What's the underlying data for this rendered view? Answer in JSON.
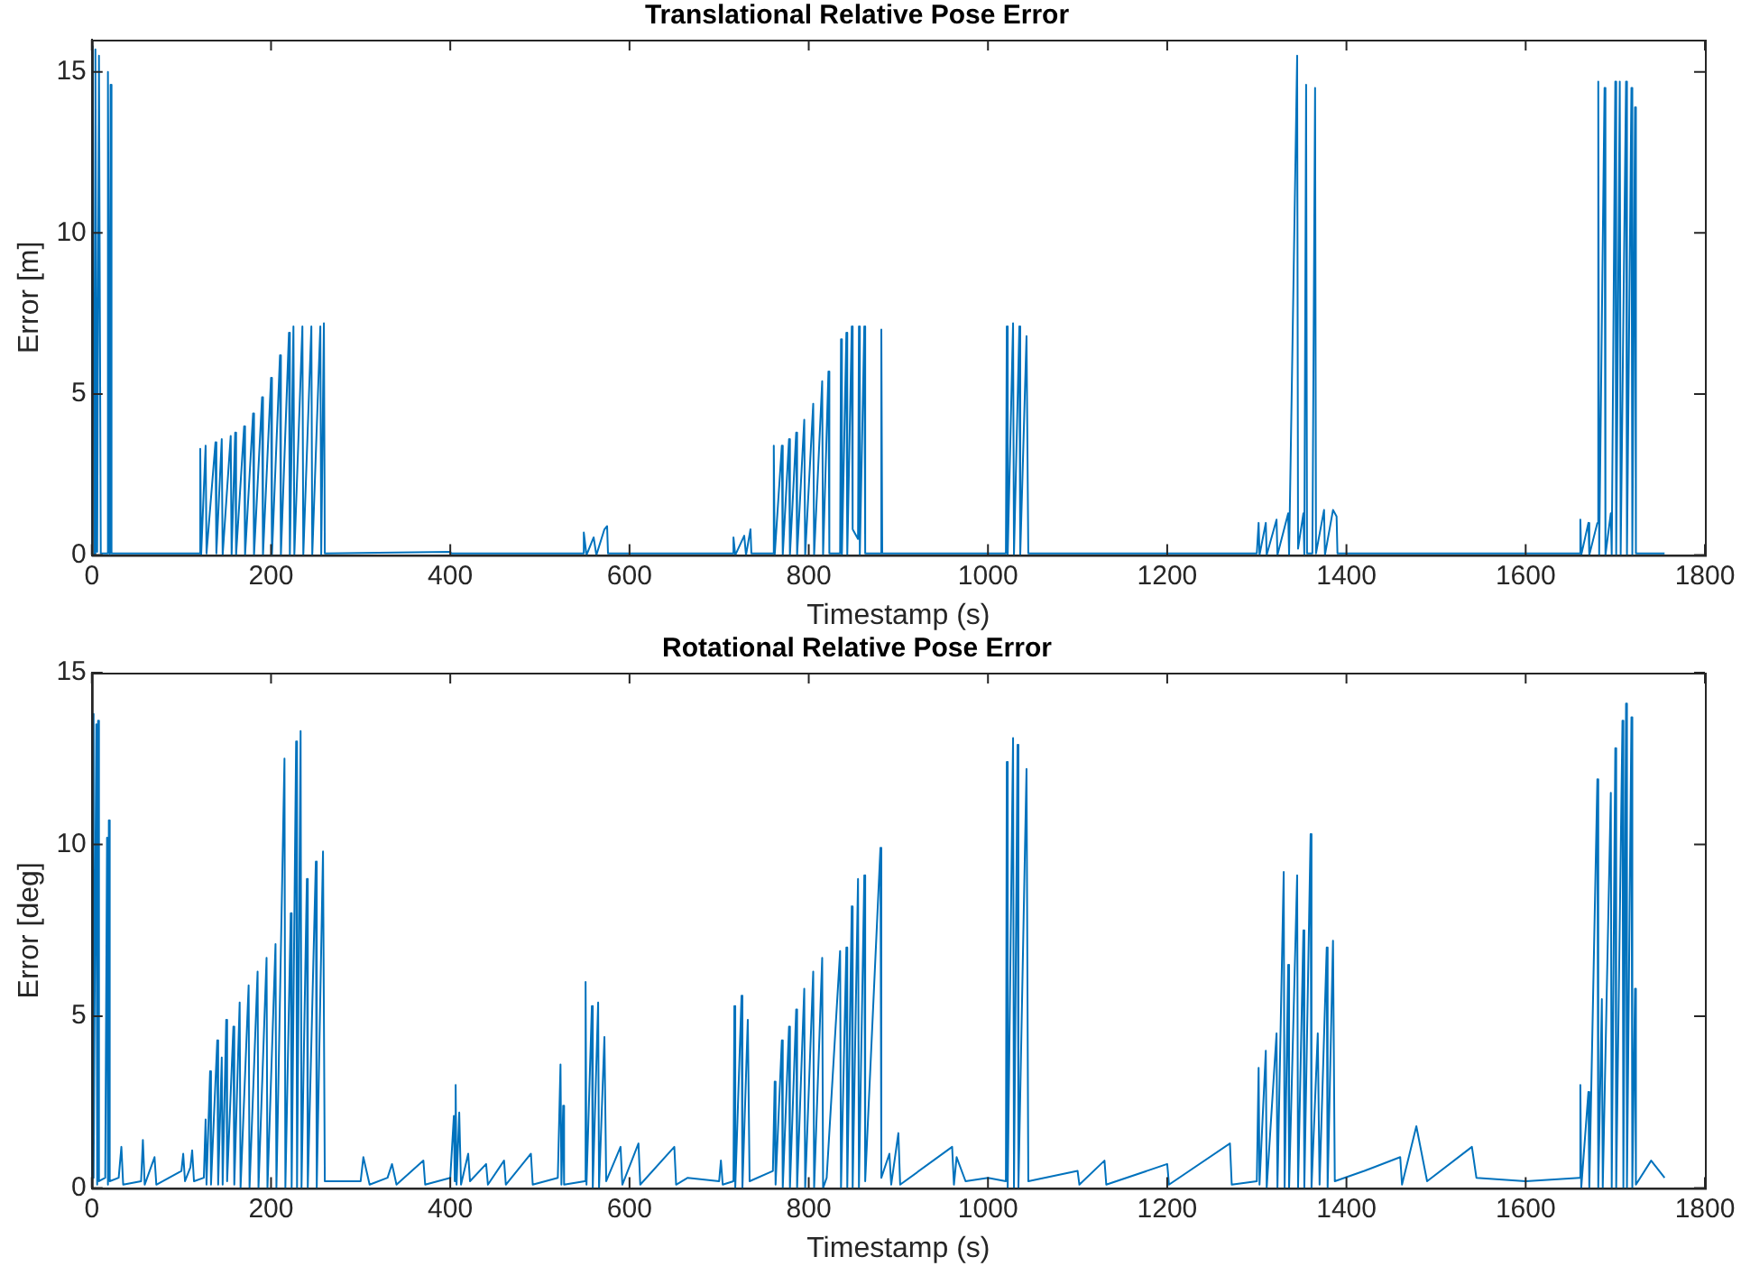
{
  "chart_data": [
    {
      "type": "line",
      "title": "Translational Relative Pose Error",
      "xlabel": "Timestamp (s)",
      "ylabel": "Error [m]",
      "xlim": [
        0,
        1800
      ],
      "xticks": [
        0,
        200,
        400,
        600,
        800,
        1000,
        1200,
        1400,
        1600,
        1800
      ],
      "ylim": [
        0,
        16
      ],
      "yticks": [
        0,
        5,
        10,
        15
      ],
      "grid": false,
      "legend": false,
      "marker": "none",
      "line_style": "solid",
      "series": [
        {
          "color": "#0072bd",
          "x": [
            0,
            1,
            3,
            4,
            6,
            8,
            10,
            17,
            18,
            20,
            21,
            22,
            120,
            121,
            122,
            127,
            128,
            138,
            139,
            145,
            146,
            155,
            156,
            160,
            161,
            170,
            171,
            180,
            181,
            190,
            191,
            200,
            201,
            210,
            211,
            220,
            221,
            225,
            226,
            235,
            236,
            245,
            246,
            255,
            256,
            259,
            260,
            400,
            401,
            548,
            549,
            552,
            560,
            563,
            572,
            575,
            576,
            715,
            716,
            718,
            728,
            730,
            735,
            736,
            760,
            761,
            762,
            770,
            771,
            778,
            779,
            786,
            787,
            795,
            796,
            805,
            806,
            815,
            816,
            822,
            823,
            835,
            836,
            837,
            842,
            843,
            848,
            849,
            855,
            856,
            857,
            862,
            863,
            880,
            881,
            882,
            1020,
            1021,
            1022,
            1028,
            1029,
            1035,
            1036,
            1043,
            1045,
            1300,
            1302,
            1303,
            1310,
            1311,
            1322,
            1323,
            1335,
            1336,
            1345,
            1346,
            1352,
            1353,
            1355,
            1356,
            1362,
            1365,
            1366,
            1375,
            1376,
            1385,
            1389,
            1390,
            1660,
            1661,
            1662,
            1670,
            1671,
            1680,
            1681,
            1682,
            1688,
            1689,
            1695,
            1696,
            1700,
            1701,
            1705,
            1706,
            1712,
            1713,
            1718,
            1719,
            1722,
            1723,
            1755
          ],
          "values": [
            0,
            15.8,
            0,
            15.7,
            0.1,
            15.5,
            0.05,
            0.05,
            15,
            0,
            14.6,
            0.05,
            0.05,
            3.3,
            0,
            3.4,
            0.05,
            3.5,
            0.05,
            3.6,
            0,
            3.7,
            0,
            3.8,
            0,
            4.0,
            0,
            4.4,
            0,
            4.9,
            0,
            5.5,
            0,
            6.2,
            0,
            6.9,
            0,
            7.1,
            0,
            7.1,
            0,
            7.1,
            0,
            7.1,
            0,
            7.2,
            0.05,
            0.1,
            0.05,
            0.05,
            0.7,
            0,
            0.55,
            0,
            0.8,
            0.9,
            0.05,
            0.05,
            0.55,
            0,
            0.6,
            0,
            0.8,
            0.05,
            0.05,
            3.4,
            0,
            3.4,
            0,
            3.6,
            0,
            3.8,
            0,
            4.2,
            0,
            4.7,
            0,
            5.4,
            0,
            5.7,
            0.05,
            0.05,
            6.7,
            0,
            6.9,
            0,
            7.1,
            0.8,
            0.5,
            7.1,
            0,
            7.1,
            0.05,
            0.05,
            7.0,
            0.05,
            0.05,
            7.1,
            0,
            7.2,
            0,
            7.1,
            0,
            6.8,
            0.05,
            0.05,
            1.0,
            0,
            1.0,
            0,
            1.1,
            0,
            1.3,
            0,
            15.5,
            0.2,
            1.3,
            0,
            14.6,
            0.05,
            0.05,
            14.5,
            0.05,
            1.4,
            0,
            1.4,
            1.2,
            0.05,
            0.05,
            1.1,
            0,
            1.0,
            0,
            1.0,
            14.7,
            0,
            14.5,
            0,
            1.3,
            0,
            14.7,
            0,
            14.7,
            0,
            14.7,
            0,
            14.5,
            0,
            13.9,
            0.05,
            0.05
          ]
        }
      ]
    },
    {
      "type": "line",
      "title": "Rotational Relative Pose Error",
      "xlabel": "Timestamp (s)",
      "ylabel": "Error [deg]",
      "xlim": [
        0,
        1800
      ],
      "xticks": [
        0,
        200,
        400,
        600,
        800,
        1000,
        1200,
        1400,
        1600,
        1800
      ],
      "ylim": [
        0,
        15
      ],
      "yticks": [
        0,
        5,
        10,
        15
      ],
      "grid": false,
      "legend": false,
      "marker": "none",
      "line_style": "solid",
      "series": [
        {
          "color": "#0072bd",
          "x": [
            0,
            1,
            2,
            5,
            6,
            7,
            8,
            15,
            17,
            18,
            19,
            20,
            30,
            33,
            35,
            55,
            57,
            59,
            70,
            72,
            100,
            102,
            104,
            110,
            112,
            114,
            125,
            127,
            128,
            132,
            133,
            140,
            141,
            145,
            146,
            150,
            151,
            158,
            159,
            165,
            166,
            175,
            176,
            185,
            186,
            195,
            196,
            205,
            206,
            215,
            216,
            222,
            223,
            228,
            229,
            233,
            234,
            240,
            241,
            250,
            251,
            258,
            260,
            280,
            300,
            303,
            310,
            330,
            335,
            340,
            370,
            372,
            400,
            404,
            405,
            406,
            407,
            410,
            412,
            420,
            422,
            440,
            442,
            460,
            462,
            490,
            492,
            520,
            523,
            524,
            526,
            527,
            550,
            551,
            552,
            558,
            559,
            565,
            566,
            572,
            574,
            590,
            592,
            610,
            612,
            650,
            652,
            665,
            700,
            702,
            704,
            716,
            717,
            718,
            725,
            726,
            732,
            734,
            760,
            762,
            763,
            770,
            771,
            778,
            779,
            786,
            787,
            795,
            796,
            805,
            806,
            815,
            816,
            820,
            835,
            836,
            842,
            843,
            848,
            849,
            855,
            856,
            862,
            863,
            880,
            881,
            890,
            892,
            900,
            902,
            960,
            962,
            965,
            975,
            1000,
            1020,
            1021,
            1022,
            1028,
            1029,
            1033,
            1034,
            1043,
            1045,
            1100,
            1102,
            1130,
            1132,
            1200,
            1202,
            1270,
            1272,
            1300,
            1302,
            1303,
            1310,
            1311,
            1322,
            1323,
            1330,
            1331,
            1335,
            1336,
            1345,
            1346,
            1352,
            1353,
            1360,
            1361,
            1368,
            1370,
            1378,
            1379,
            1385,
            1387,
            1420,
            1460,
            1462,
            1478,
            1490,
            1540,
            1545,
            1600,
            1660,
            1661,
            1662,
            1670,
            1671,
            1680,
            1681,
            1685,
            1686,
            1695,
            1696,
            1700,
            1701,
            1708,
            1709,
            1712,
            1713,
            1718,
            1719,
            1722,
            1723,
            1740,
            1755
          ],
          "values": [
            0.2,
            13.8,
            0.3,
            13.5,
            0.1,
            13.6,
            0.2,
            0.3,
            10.2,
            0.1,
            10.7,
            0.2,
            0.3,
            1.2,
            0.1,
            0.2,
            1.4,
            0.1,
            0.9,
            0.1,
            0.5,
            1.0,
            0.2,
            0.6,
            1.1,
            0.2,
            0.3,
            2.0,
            0.1,
            3.4,
            0.1,
            4.3,
            0.1,
            3.8,
            0.1,
            4.9,
            0.2,
            4.7,
            0.1,
            5.4,
            0,
            5.9,
            0,
            6.3,
            0,
            6.7,
            0,
            7.1,
            0,
            12.5,
            0,
            8.0,
            0,
            13.0,
            0,
            13.3,
            0,
            9.0,
            0,
            9.5,
            0,
            9.8,
            0.2,
            0.2,
            0.2,
            0.9,
            0.1,
            0.3,
            0.7,
            0.1,
            0.8,
            0.1,
            0.3,
            2.1,
            0.2,
            3.0,
            0.1,
            2.2,
            0.1,
            1.0,
            0.2,
            0.7,
            0.1,
            0.8,
            0.1,
            1.0,
            0.1,
            0.3,
            3.6,
            0.1,
            2.4,
            0.1,
            0.2,
            6.0,
            0.1,
            5.3,
            0,
            5.4,
            0,
            4.4,
            0.2,
            1.2,
            0.1,
            1.3,
            0.1,
            1.2,
            0.1,
            0.3,
            0.2,
            0.8,
            0.1,
            0.2,
            5.3,
            0,
            5.6,
            0,
            4.9,
            0.2,
            0.5,
            3.1,
            0.1,
            4.3,
            0,
            4.7,
            0,
            5.2,
            0,
            5.8,
            0,
            6.3,
            0,
            6.7,
            0,
            0.3,
            6.9,
            0,
            7.0,
            0,
            8.2,
            0,
            9.0,
            0,
            9.1,
            0.2,
            9.9,
            0.3,
            1.0,
            0.1,
            1.6,
            0.1,
            1.2,
            0.1,
            0.9,
            0.2,
            0.3,
            0.2,
            12.4,
            0,
            13.1,
            0,
            12.9,
            0,
            12.2,
            0.2,
            0.5,
            0.1,
            0.8,
            0.1,
            0.7,
            0.1,
            1.3,
            0.1,
            0.2,
            3.5,
            0.1,
            4.0,
            0,
            4.5,
            0,
            9.2,
            0,
            6.5,
            0,
            9.1,
            0,
            7.5,
            0,
            10.3,
            0,
            4.5,
            0.1,
            7.0,
            0,
            7.2,
            0.2,
            0.5,
            0.9,
            0.1,
            1.8,
            0.2,
            1.2,
            0.3,
            0.2,
            0.3,
            3.0,
            0,
            2.8,
            0,
            11.9,
            0,
            5.5,
            0,
            11.5,
            0,
            12.8,
            0,
            13.6,
            0,
            14.1,
            0,
            13.7,
            0,
            5.8,
            0.1,
            0.8,
            0.3
          ]
        }
      ]
    }
  ]
}
